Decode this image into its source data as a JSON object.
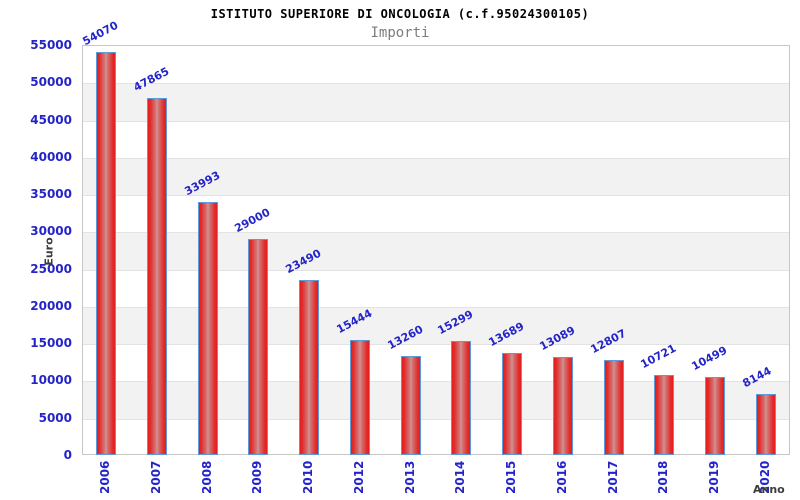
{
  "chart_data": {
    "type": "bar",
    "title": "ISTITUTO SUPERIORE DI ONCOLOGIA (c.f.95024300105)",
    "subtitle": "Importi",
    "xlabel": "Anno",
    "ylabel": "Euro",
    "categories": [
      "2006",
      "2007",
      "2008",
      "2009",
      "2010",
      "2012",
      "2013",
      "2014",
      "2015",
      "2016",
      "2017",
      "2018",
      "2019",
      "2020"
    ],
    "values": [
      54070,
      47865,
      33993,
      29000,
      23490,
      15444,
      13260,
      15299,
      13689,
      13089,
      12807,
      10721,
      10499,
      8144
    ],
    "ylim": [
      0,
      55000
    ],
    "ytick_step": 5000,
    "grid": "alternating-horizontal-bands",
    "legend": "none",
    "colors": {
      "value_label": "#2424c8",
      "tick_label": "#2424c8",
      "axis_title": "#3c3c3c",
      "chart_title": "#000000",
      "chart_subtitle": "#7d7d7d",
      "bar_edge_red": "#e41c1c",
      "bar_center_red": "#cf9494",
      "bar_border_blue": "#5e9ad9",
      "band_gray": "#f2f2f2",
      "plot_border": "#c6c6c6"
    }
  }
}
